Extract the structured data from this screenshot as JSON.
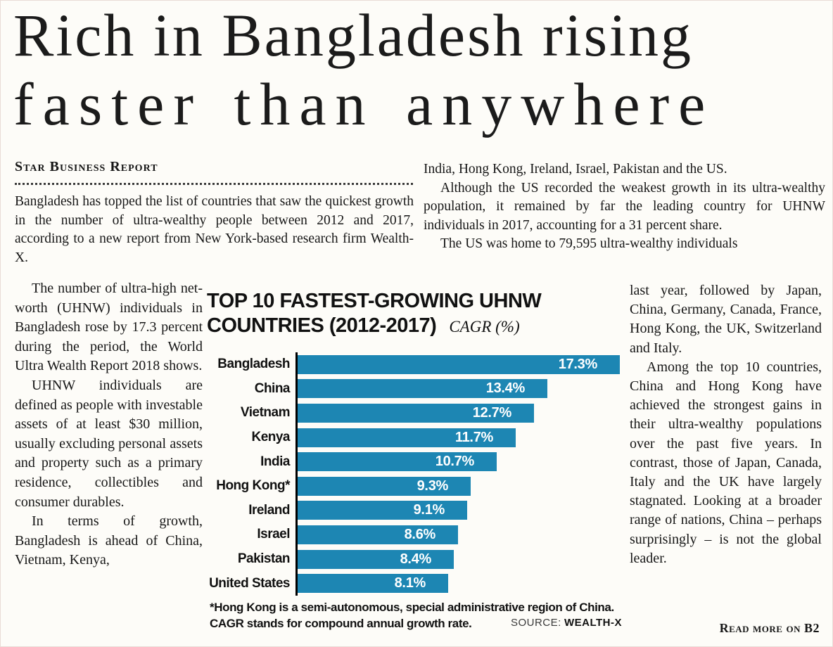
{
  "page": {
    "headline_line1": "Rich in Bangladesh rising",
    "headline_line2": "faster than anywhere",
    "byline": "Star Business Report",
    "read_more": "Read more on B2"
  },
  "article": {
    "lead": "Bangladesh has topped the list of countries that saw the quickest growth in the number of ultra-wealthy people between 2012 and 2017, according to a new report from New York-based research firm Wealth-X.",
    "left": [
      "The number of ultra-high net-worth (UHNW) individuals in Bangladesh rose by 17.3 percent during the period, the World Ultra Wealth Report 2018 shows.",
      "UHNW individuals are defined as people with investable assets of at least $30 million, usually excluding personal assets and property such as a primary residence, collectibles and consumer durables.",
      "In terms of growth, Bangladesh is ahead of China, Vietnam, Kenya,"
    ],
    "top_right": [
      "India, Hong Kong, Ireland, Israel, Pakistan and the US.",
      "Although the US recorded the weakest growth in its ultra-wealthy population, it remained by far the leading country for UHNW individuals in 2017, accounting for a 31 percent share.",
      "The US was home to 79,595 ultra-wealthy individuals"
    ],
    "right": [
      "last year, followed by Japan, China, Germany, Canada, France, Hong Kong, the UK, Switzerland and Italy.",
      "Among the top 10 countries, China and Hong Kong have achieved the strongest gains in their ultra-wealthy populations over the past five years. In contrast, those of Japan, Canada, Italy and the UK have largely stagnated. Looking at a broader range of nations, China – perhaps surprisingly – is not the global leader."
    ]
  },
  "chart_data": {
    "type": "bar",
    "orientation": "horizontal",
    "title": "TOP 10 FASTEST-GROWING UHNW COUNTRIES (2012-2017)",
    "title_line1": "TOP 10 FASTEST-GROWING UHNW",
    "title_line2": "COUNTRIES (2012-2017)",
    "unit_label": "CAGR (%)",
    "categories": [
      "Bangladesh",
      "China",
      "Vietnam",
      "Kenya",
      "India",
      "Hong Kong*",
      "Ireland",
      "Israel",
      "Pakistan",
      "United States"
    ],
    "values": [
      17.3,
      13.4,
      12.7,
      11.7,
      10.7,
      9.3,
      9.1,
      8.6,
      8.4,
      8.1
    ],
    "value_labels": [
      "17.3%",
      "13.4%",
      "12.7%",
      "11.7%",
      "10.7%",
      "9.3%",
      "9.1%",
      "8.6%",
      "8.4%",
      "8.1%"
    ],
    "xlim": [
      0,
      18
    ],
    "grid": false,
    "legend": "none",
    "bar_color": "#1d86b3",
    "footnotes": [
      "*Hong Kong is a semi-autonomous, special administrative region of China.",
      "CAGR stands for compound annual growth rate."
    ],
    "source_label": "SOURCE:",
    "source_value": "WEALTH-X"
  }
}
